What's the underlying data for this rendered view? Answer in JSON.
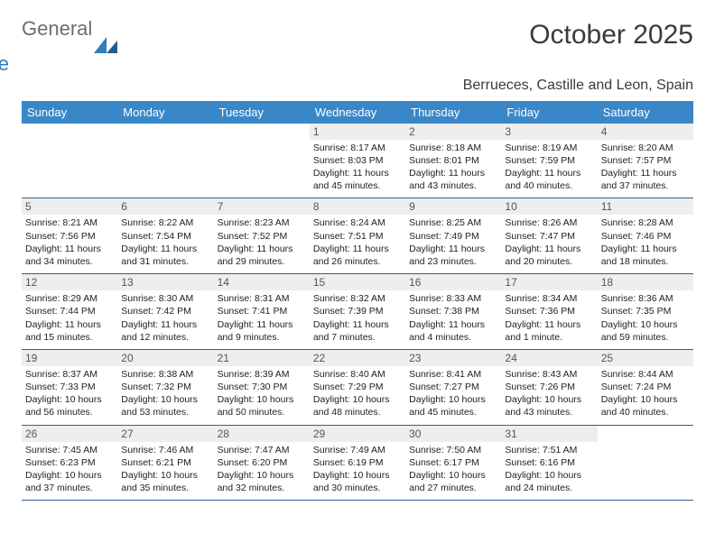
{
  "brand": {
    "word1": "General",
    "word2": "Blue",
    "text_color1": "#6d6d6d",
    "text_color2": "#2f7fbf",
    "mark_color": "#2f7fbf"
  },
  "title": "October 2025",
  "location": "Berrueces, Castille and Leon, Spain",
  "header_bg": "#3a87c8",
  "header_fg": "#ffffff",
  "daynum_bg": "#eeeeee",
  "rule_color": "#2f5f8f",
  "weekdays": [
    "Sunday",
    "Monday",
    "Tuesday",
    "Wednesday",
    "Thursday",
    "Friday",
    "Saturday"
  ],
  "weeks": [
    [
      null,
      null,
      null,
      {
        "n": "1",
        "sunrise": "8:17 AM",
        "sunset": "8:03 PM",
        "daylight": "11 hours and 45 minutes."
      },
      {
        "n": "2",
        "sunrise": "8:18 AM",
        "sunset": "8:01 PM",
        "daylight": "11 hours and 43 minutes."
      },
      {
        "n": "3",
        "sunrise": "8:19 AM",
        "sunset": "7:59 PM",
        "daylight": "11 hours and 40 minutes."
      },
      {
        "n": "4",
        "sunrise": "8:20 AM",
        "sunset": "7:57 PM",
        "daylight": "11 hours and 37 minutes."
      }
    ],
    [
      {
        "n": "5",
        "sunrise": "8:21 AM",
        "sunset": "7:56 PM",
        "daylight": "11 hours and 34 minutes."
      },
      {
        "n": "6",
        "sunrise": "8:22 AM",
        "sunset": "7:54 PM",
        "daylight": "11 hours and 31 minutes."
      },
      {
        "n": "7",
        "sunrise": "8:23 AM",
        "sunset": "7:52 PM",
        "daylight": "11 hours and 29 minutes."
      },
      {
        "n": "8",
        "sunrise": "8:24 AM",
        "sunset": "7:51 PM",
        "daylight": "11 hours and 26 minutes."
      },
      {
        "n": "9",
        "sunrise": "8:25 AM",
        "sunset": "7:49 PM",
        "daylight": "11 hours and 23 minutes."
      },
      {
        "n": "10",
        "sunrise": "8:26 AM",
        "sunset": "7:47 PM",
        "daylight": "11 hours and 20 minutes."
      },
      {
        "n": "11",
        "sunrise": "8:28 AM",
        "sunset": "7:46 PM",
        "daylight": "11 hours and 18 minutes."
      }
    ],
    [
      {
        "n": "12",
        "sunrise": "8:29 AM",
        "sunset": "7:44 PM",
        "daylight": "11 hours and 15 minutes."
      },
      {
        "n": "13",
        "sunrise": "8:30 AM",
        "sunset": "7:42 PM",
        "daylight": "11 hours and 12 minutes."
      },
      {
        "n": "14",
        "sunrise": "8:31 AM",
        "sunset": "7:41 PM",
        "daylight": "11 hours and 9 minutes."
      },
      {
        "n": "15",
        "sunrise": "8:32 AM",
        "sunset": "7:39 PM",
        "daylight": "11 hours and 7 minutes."
      },
      {
        "n": "16",
        "sunrise": "8:33 AM",
        "sunset": "7:38 PM",
        "daylight": "11 hours and 4 minutes."
      },
      {
        "n": "17",
        "sunrise": "8:34 AM",
        "sunset": "7:36 PM",
        "daylight": "11 hours and 1 minute."
      },
      {
        "n": "18",
        "sunrise": "8:36 AM",
        "sunset": "7:35 PM",
        "daylight": "10 hours and 59 minutes."
      }
    ],
    [
      {
        "n": "19",
        "sunrise": "8:37 AM",
        "sunset": "7:33 PM",
        "daylight": "10 hours and 56 minutes."
      },
      {
        "n": "20",
        "sunrise": "8:38 AM",
        "sunset": "7:32 PM",
        "daylight": "10 hours and 53 minutes."
      },
      {
        "n": "21",
        "sunrise": "8:39 AM",
        "sunset": "7:30 PM",
        "daylight": "10 hours and 50 minutes."
      },
      {
        "n": "22",
        "sunrise": "8:40 AM",
        "sunset": "7:29 PM",
        "daylight": "10 hours and 48 minutes."
      },
      {
        "n": "23",
        "sunrise": "8:41 AM",
        "sunset": "7:27 PM",
        "daylight": "10 hours and 45 minutes."
      },
      {
        "n": "24",
        "sunrise": "8:43 AM",
        "sunset": "7:26 PM",
        "daylight": "10 hours and 43 minutes."
      },
      {
        "n": "25",
        "sunrise": "8:44 AM",
        "sunset": "7:24 PM",
        "daylight": "10 hours and 40 minutes."
      }
    ],
    [
      {
        "n": "26",
        "sunrise": "7:45 AM",
        "sunset": "6:23 PM",
        "daylight": "10 hours and 37 minutes."
      },
      {
        "n": "27",
        "sunrise": "7:46 AM",
        "sunset": "6:21 PM",
        "daylight": "10 hours and 35 minutes."
      },
      {
        "n": "28",
        "sunrise": "7:47 AM",
        "sunset": "6:20 PM",
        "daylight": "10 hours and 32 minutes."
      },
      {
        "n": "29",
        "sunrise": "7:49 AM",
        "sunset": "6:19 PM",
        "daylight": "10 hours and 30 minutes."
      },
      {
        "n": "30",
        "sunrise": "7:50 AM",
        "sunset": "6:17 PM",
        "daylight": "10 hours and 27 minutes."
      },
      {
        "n": "31",
        "sunrise": "7:51 AM",
        "sunset": "6:16 PM",
        "daylight": "10 hours and 24 minutes."
      },
      null
    ]
  ],
  "labels": {
    "sunrise": "Sunrise:",
    "sunset": "Sunset:",
    "daylight": "Daylight:"
  }
}
